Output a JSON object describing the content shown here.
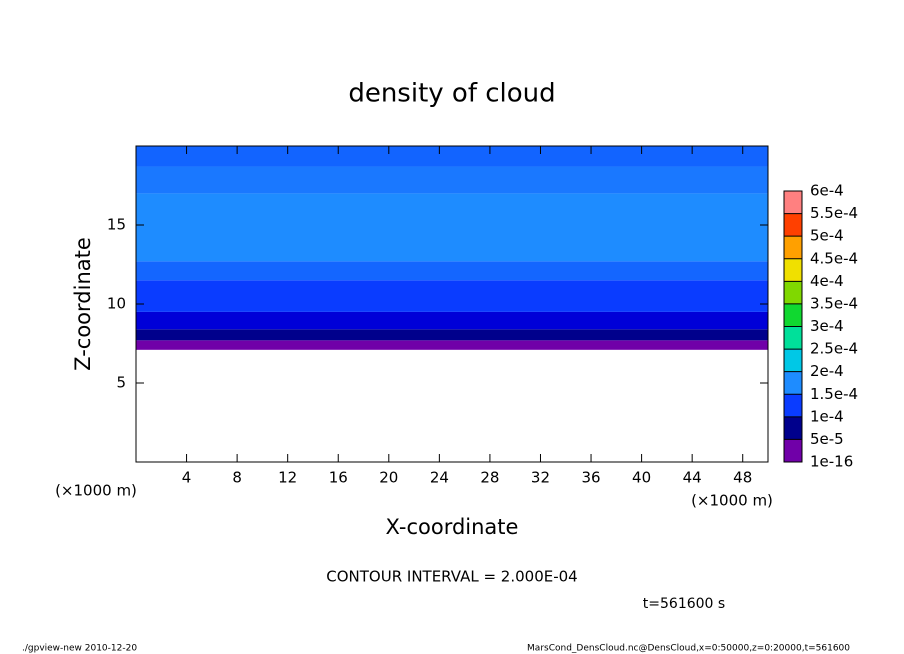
{
  "chart_data": {
    "type": "contour",
    "title": "density of cloud",
    "xlabel": "X-coordinate",
    "ylabel": "Z-coordinate",
    "xunit": "(×1000 m)",
    "yunit": "(×1000 m)",
    "xlim": [
      0,
      50
    ],
    "ylim": [
      0,
      20
    ],
    "xticks": [
      4,
      8,
      12,
      16,
      20,
      24,
      28,
      32,
      36,
      40,
      44,
      48
    ],
    "yticks": [
      5,
      10,
      15
    ],
    "layers": [
      {
        "z": [
          7.1,
          7.7
        ],
        "color": "#7000a8"
      },
      {
        "z": [
          7.7,
          8.4
        ],
        "color": "#00008c"
      },
      {
        "z": [
          8.4,
          9.5
        ],
        "color": "#0000d8"
      },
      {
        "z": [
          9.5,
          11.5
        ],
        "color": "#0a3cff"
      },
      {
        "z": [
          11.5,
          12.7
        ],
        "color": "#1466ff"
      },
      {
        "z": [
          12.7,
          17.0
        ],
        "color": "#1e8cff"
      },
      {
        "z": [
          17.0,
          18.7
        ],
        "color": "#1a78ff"
      },
      {
        "z": [
          18.7,
          20
        ],
        "color": "#1264ff"
      }
    ],
    "colorbar": {
      "levels": [
        {
          "value": 1e-16,
          "label": "1e-16"
        },
        {
          "value": 5e-05,
          "label": "5e-5"
        },
        {
          "value": 0.0001,
          "label": "1e-4"
        },
        {
          "value": 0.00015,
          "label": "1.5e-4"
        },
        {
          "value": 0.0002,
          "label": "2e-4"
        },
        {
          "value": 0.00025,
          "label": "2.5e-4"
        },
        {
          "value": 0.0003,
          "label": "3e-4"
        },
        {
          "value": 0.00035,
          "label": "3.5e-4"
        },
        {
          "value": 0.0004,
          "label": "4e-4"
        },
        {
          "value": 0.00045,
          "label": "4.5e-4"
        },
        {
          "value": 0.0005,
          "label": "5e-4"
        },
        {
          "value": 0.00055,
          "label": "5.5e-4"
        },
        {
          "value": 0.0006,
          "label": "6e-4"
        }
      ],
      "colors": [
        "#7000a8",
        "#00008c",
        "#0a3cff",
        "#1e8cff",
        "#00c8e6",
        "#00e09a",
        "#10d830",
        "#80d800",
        "#f0e000",
        "#ffa000",
        "#ff4000",
        "#ff8080"
      ]
    },
    "contour_interval": "CONTOUR INTERVAL = 2.000E-04",
    "time": "t=561600 s",
    "footer_left": "./gpview-new   2010-12-20",
    "footer_right": "MarsCond_DensCloud.nc@DensCloud,x=0:50000,z=0:20000,t=561600"
  }
}
